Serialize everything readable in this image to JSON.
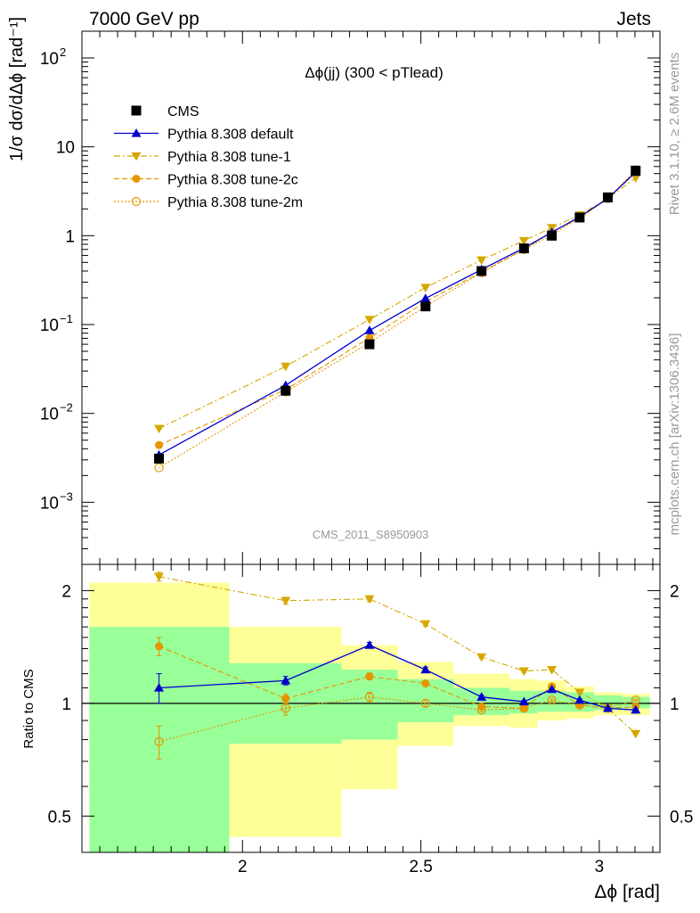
{
  "header": {
    "left": "7000 GeV pp",
    "right": "Jets"
  },
  "side_labels": {
    "rivet": "Rivet 3.1.10, ≥ 2.6M events",
    "mcplots": "mcplots.cern.ch [arXiv:1306.3436]"
  },
  "chart_data": {
    "type": "line",
    "title": "Δϕ(jj) (300 < pTlead)",
    "analysis": "CMS_2011_S8950903",
    "xlabel": "Δϕ [rad]",
    "ylabel": "1/σ dσ/dΔϕ [rad⁻¹]",
    "ratio_ylabel": "Ratio to CMS",
    "xlim": [
      1.55,
      3.17
    ],
    "ylim": [
      0.0002,
      200
    ],
    "yscale": "log",
    "ratio_ylim": [
      0.4,
      2.35
    ],
    "x_ticks": [
      2,
      2.5,
      3
    ],
    "y_ticks": [
      {
        "v": 100,
        "label": "10",
        "exp": "2"
      },
      {
        "v": 10,
        "label": "10",
        "exp": ""
      },
      {
        "v": 1,
        "label": "1",
        "exp": ""
      },
      {
        "v": 0.1,
        "label": "10",
        "exp": "−1"
      },
      {
        "v": 0.01,
        "label": "10",
        "exp": "−2"
      },
      {
        "v": 0.001,
        "label": "10",
        "exp": "−3"
      }
    ],
    "ratio_ticks": [
      {
        "v": 2,
        "label": "2"
      },
      {
        "v": 1,
        "label": "1"
      },
      {
        "v": 0.5,
        "label": "0.5"
      }
    ],
    "x": [
      1.766,
      2.121,
      2.356,
      2.513,
      2.67,
      2.789,
      2.867,
      2.945,
      3.024,
      3.102
    ],
    "bin_edges": [
      1.571,
      1.963,
      2.278,
      2.435,
      2.592,
      2.749,
      2.827,
      2.906,
      2.985,
      3.063,
      3.142
    ],
    "cms": {
      "name": "CMS",
      "values": [
        0.0031,
        0.018,
        0.06,
        0.16,
        0.4,
        0.72,
        1.0,
        1.6,
        2.7,
        5.4
      ],
      "err": [
        0.0003,
        0.0012,
        0.004,
        0.008,
        0.02,
        0.035,
        0.05,
        0.08,
        0.12,
        0.25
      ]
    },
    "bands": {
      "inner": [
        [
          0.36,
          1.6
        ],
        [
          0.78,
          1.28
        ],
        [
          0.8,
          1.23
        ],
        [
          0.89,
          1.16
        ],
        [
          0.93,
          1.1
        ],
        [
          0.94,
          1.08
        ],
        [
          0.95,
          1.08
        ],
        [
          0.95,
          1.07
        ],
        [
          0.96,
          1.05
        ],
        [
          0.97,
          1.04
        ]
      ],
      "outer": [
        [
          0.33,
          2.1
        ],
        [
          0.44,
          1.6
        ],
        [
          0.59,
          1.43
        ],
        [
          0.77,
          1.29
        ],
        [
          0.87,
          1.2
        ],
        [
          0.86,
          1.16
        ],
        [
          0.9,
          1.15
        ],
        [
          0.91,
          1.11
        ],
        [
          0.93,
          1.07
        ],
        [
          0.93,
          1.06
        ]
      ]
    },
    "series": [
      {
        "name": "Pythia 8.308 default",
        "color": "#0000cc",
        "marker": "triangle-up",
        "dash": "",
        "ratio": [
          1.1,
          1.15,
          1.43,
          1.23,
          1.04,
          1.01,
          1.09,
          1.02,
          0.97,
          0.96
        ],
        "ratio_err": [
          0.1,
          0.03,
          0.025,
          0.02,
          0.01,
          0.008,
          0.008,
          0.008,
          0.006,
          0.005
        ]
      },
      {
        "name": "Pythia 8.308 tune-1",
        "color": "#d4a800",
        "marker": "triangle-down",
        "dash": "7,3,2,3",
        "ratio": [
          2.18,
          1.88,
          1.9,
          1.63,
          1.33,
          1.22,
          1.23,
          1.07,
          0.97,
          0.83
        ],
        "ratio_err": [
          0.06,
          0.04,
          0.03,
          0.02,
          0.01,
          0.01,
          0.01,
          0.008,
          0.006,
          0.005
        ]
      },
      {
        "name": "Pythia 8.308 tune-2c",
        "color": "#e69500",
        "marker": "circle",
        "dash": "6,3",
        "ratio": [
          1.42,
          1.03,
          1.18,
          1.13,
          0.98,
          0.97,
          1.11,
          0.99,
          0.97,
          0.98
        ],
        "ratio_err": [
          0.08,
          0.03,
          0.025,
          0.015,
          0.01,
          0.008,
          0.008,
          0.008,
          0.006,
          0.005
        ]
      },
      {
        "name": "Pythia 8.308 tune-2m",
        "color": "#e69500",
        "marker": "circle-open",
        "dash": "2,2",
        "ratio": [
          0.79,
          0.97,
          1.04,
          1.0,
          0.96,
          0.97,
          1.02,
          0.99,
          0.97,
          1.02
        ],
        "ratio_err": [
          0.08,
          0.04,
          0.03,
          0.02,
          0.01,
          0.008,
          0.008,
          0.008,
          0.006,
          0.005
        ]
      }
    ]
  }
}
